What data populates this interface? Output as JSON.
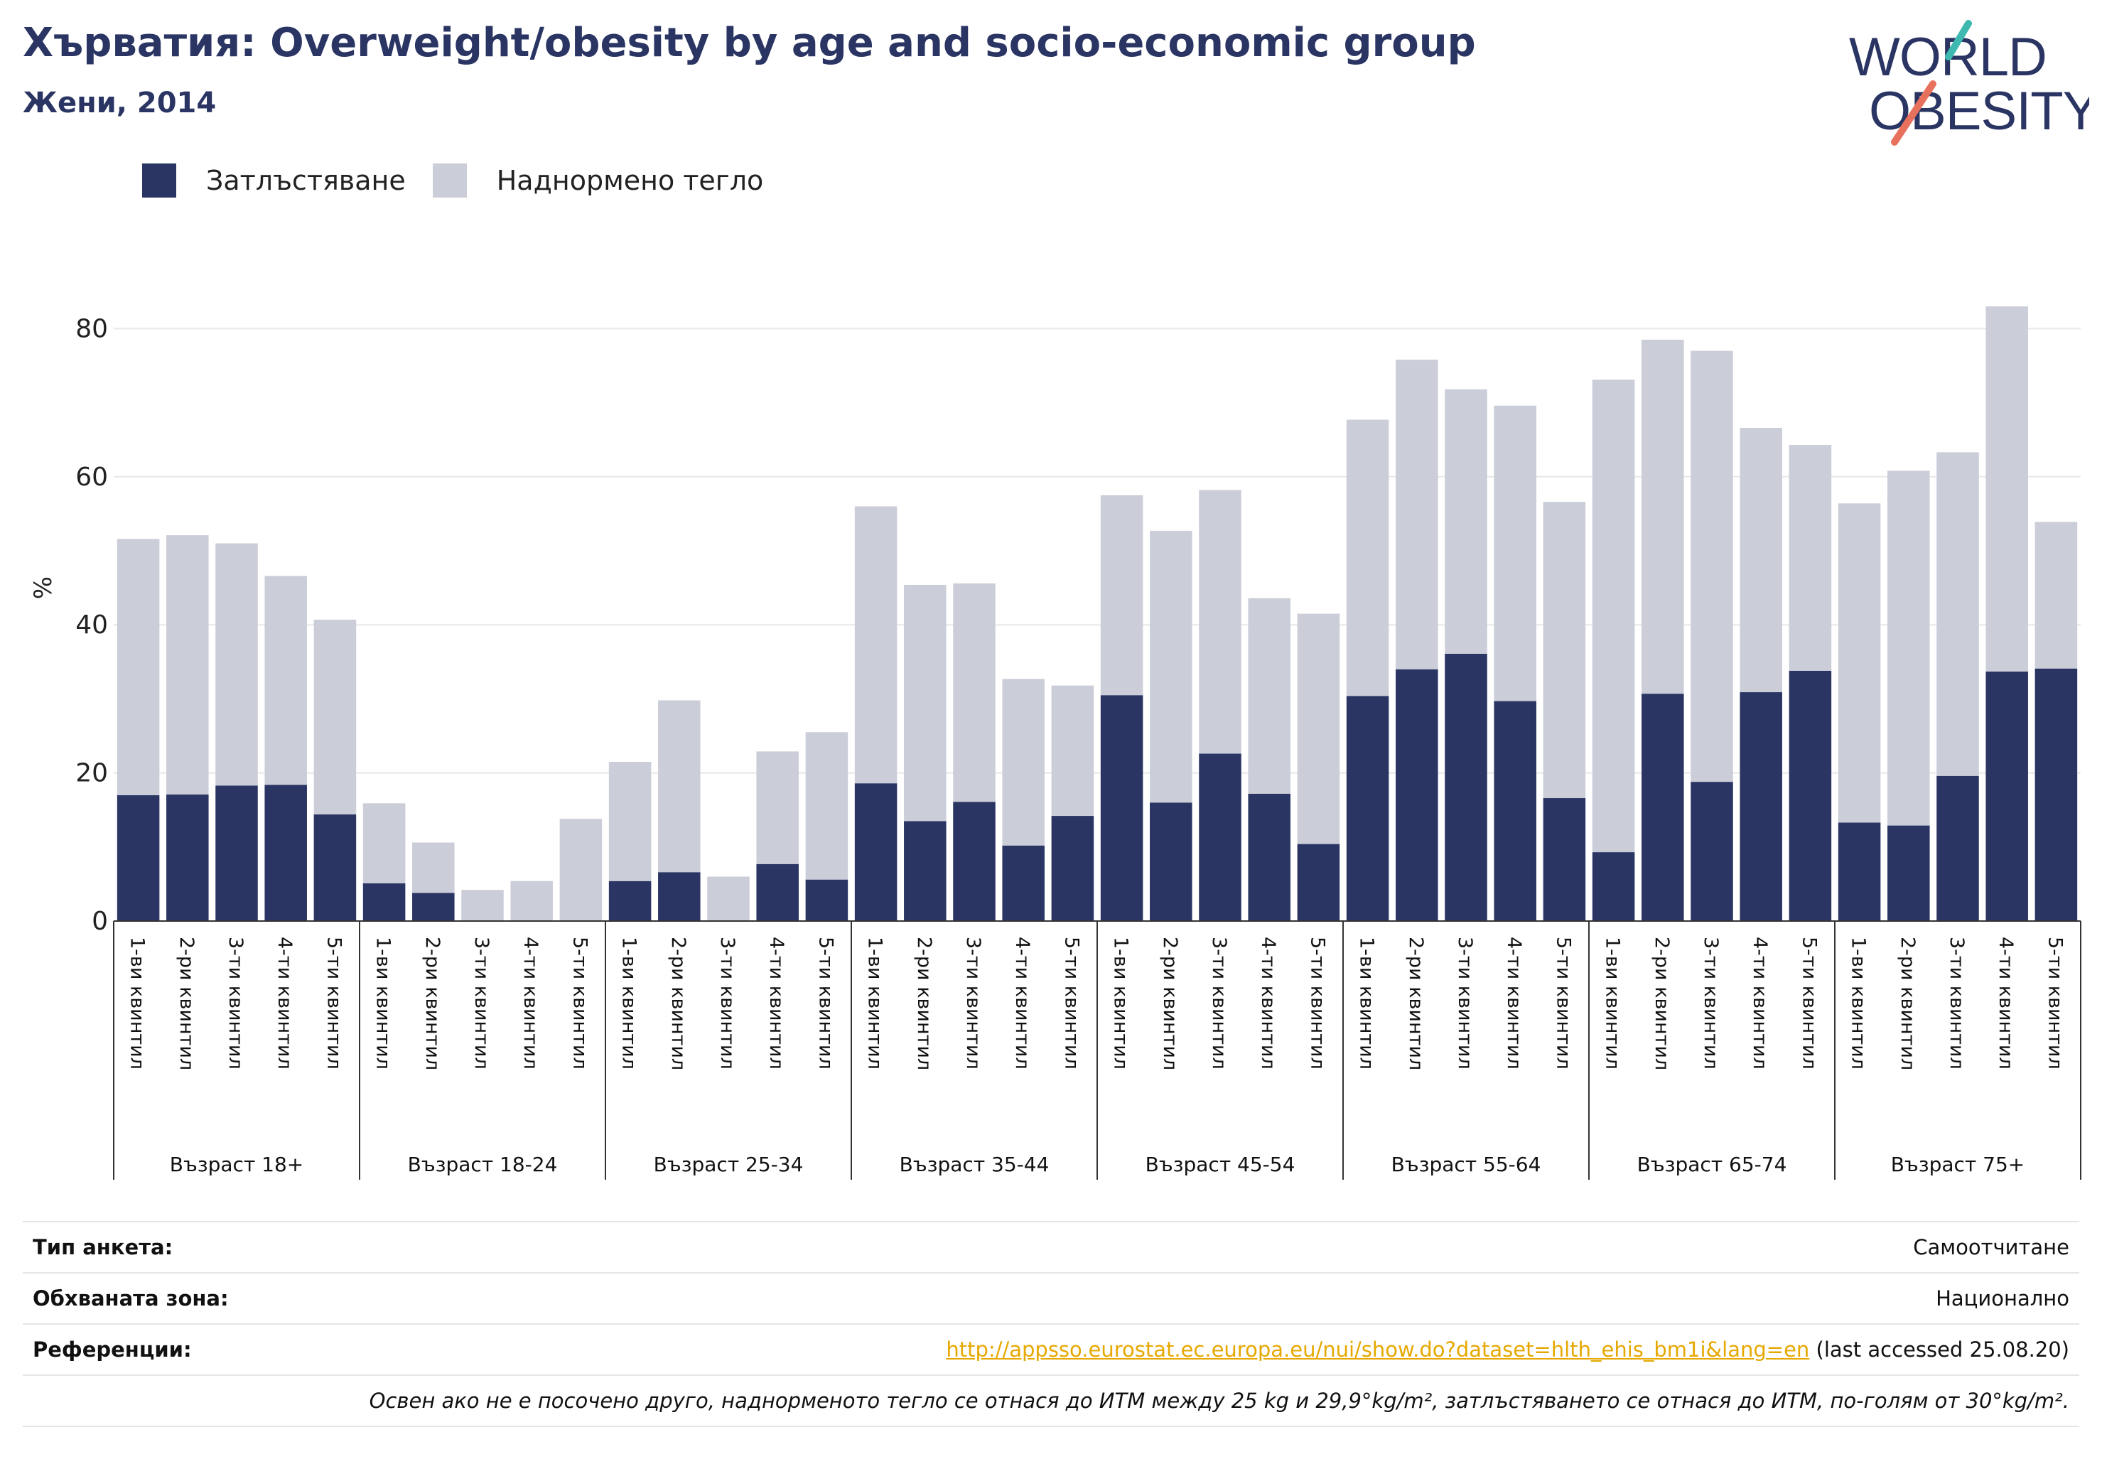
{
  "header": {
    "title": "Хърватия: Overweight/obesity by age and socio-economic group",
    "subtitle": "Жени, 2014"
  },
  "logo": {
    "line1": "WORLD",
    "line2": "OBESITY"
  },
  "colors": {
    "obesity": "#2a3563",
    "overweight": "#cbcdd8",
    "text": "#2a3563",
    "link": "#e6a800"
  },
  "chart_data": {
    "type": "bar",
    "stacked": true,
    "ylabel": "%",
    "ylim": [
      0,
      90
    ],
    "yticks": [
      0,
      20,
      40,
      60,
      80
    ],
    "grid": true,
    "legend_position": "top-left",
    "groups": [
      "Възраст 18+",
      "Възраст 18-24",
      "Възраст 25-34",
      "Възраст 35-44",
      "Възраст 45-54",
      "Възраст 55-64",
      "Възраст 65-74",
      "Възраст 75+"
    ],
    "categories": [
      "1-ви квинтил",
      "2-ри квинтил",
      "3-ти квинтил",
      "4-ти квинтил",
      "5-ти квинтил"
    ],
    "series": [
      {
        "name": "Затлъстяване",
        "values": [
          [
            17.0,
            17.1,
            18.3,
            18.4,
            14.4
          ],
          [
            5.1,
            3.8,
            0.0,
            0.0,
            0.0
          ],
          [
            5.4,
            6.6,
            0.0,
            7.7,
            5.6
          ],
          [
            18.6,
            13.5,
            16.1,
            10.2,
            14.2
          ],
          [
            30.5,
            16.0,
            22.6,
            17.2,
            10.4
          ],
          [
            30.4,
            34.0,
            36.1,
            29.7,
            16.6
          ],
          [
            9.3,
            30.7,
            18.8,
            30.9,
            33.8
          ],
          [
            13.3,
            12.9,
            19.6,
            33.7,
            34.1
          ]
        ]
      },
      {
        "name": "Наднормено тегло",
        "values": [
          [
            34.6,
            35.0,
            32.7,
            28.2,
            26.3
          ],
          [
            10.8,
            6.8,
            4.2,
            5.4,
            13.8
          ],
          [
            16.1,
            23.2,
            6.0,
            15.2,
            19.9
          ],
          [
            37.4,
            31.9,
            29.5,
            22.5,
            17.6
          ],
          [
            27.0,
            36.7,
            35.6,
            26.4,
            31.1
          ],
          [
            37.3,
            41.8,
            35.7,
            39.9,
            40.0
          ],
          [
            63.8,
            47.8,
            58.2,
            35.7,
            30.5
          ],
          [
            43.1,
            47.9,
            43.7,
            49.3,
            19.8
          ]
        ]
      }
    ]
  },
  "info": {
    "survey_label": "Тип анкета:",
    "survey_value": "Самоотчитане",
    "area_label": "Обхваната зона:",
    "area_value": "Национално",
    "ref_label": "Референции:",
    "ref_link": "http://appsso.eurostat.ec.europa.eu/nui/show.do?dataset=hlth_ehis_bm1i&lang=en",
    "ref_suffix": " (last accessed 25.08.20)",
    "note": "Освен ако не е посочено друго, наднорменото тегло се отнася до ИТМ между 25 kg и 29,9°kg/m², затлъстяването се отнася до ИТМ, по-голям от 30°kg/m²."
  }
}
